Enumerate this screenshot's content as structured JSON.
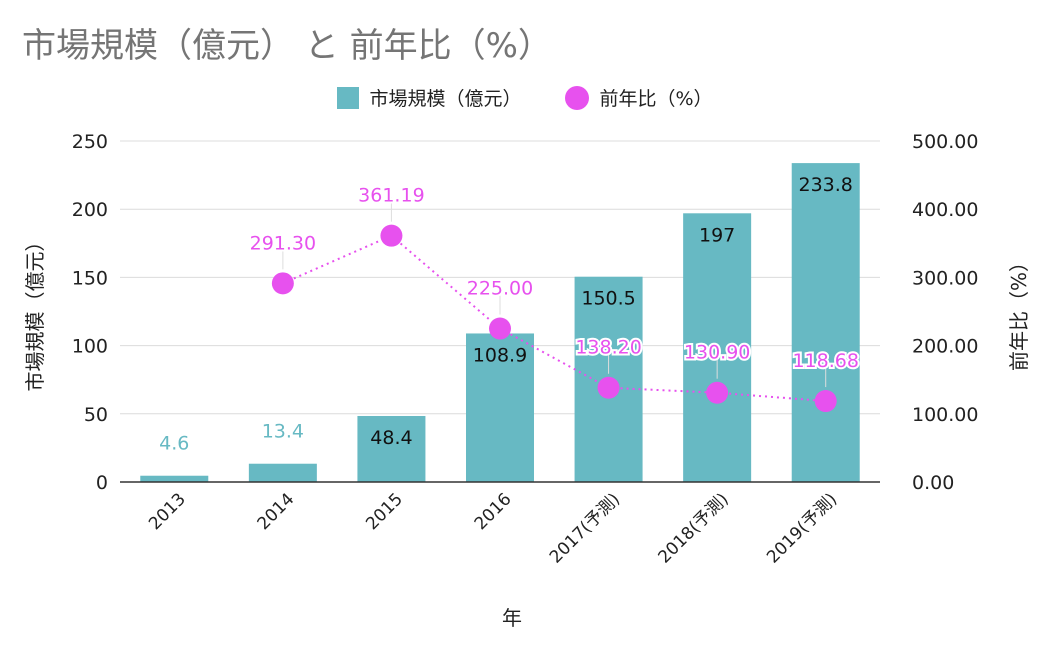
{
  "chart_data": {
    "type": "bar",
    "title": "市場規模（億元） と 前年比（%）",
    "xlabel": "年",
    "ylabel": "市場規模（億元）",
    "ylabel_right": "前年比（%）",
    "categories": [
      "2013",
      "2014",
      "2015",
      "2016",
      "2017(予測)",
      "2018(予測)",
      "2019(予測)"
    ],
    "series": [
      {
        "name": "市場規模（億元）",
        "type": "bar",
        "axis": "left",
        "color": "#67b9c3",
        "values": [
          4.6,
          13.4,
          48.4,
          108.9,
          150.5,
          197,
          233.8
        ],
        "labels": [
          "4.6",
          "13.4",
          "48.4",
          "108.9",
          "150.5",
          "197",
          "233.8"
        ]
      },
      {
        "name": "前年比（%）",
        "type": "line",
        "axis": "right",
        "color": "#e751ee",
        "line_style": "dotted",
        "values": [
          null,
          291.3,
          361.19,
          225.0,
          138.2,
          130.9,
          118.68
        ],
        "labels": [
          "",
          "291.30",
          "361.19",
          "225.00",
          "138.20",
          "130.90",
          "118.68"
        ]
      }
    ],
    "ylim": [
      0,
      250
    ],
    "yticks": [
      "0",
      "50",
      "100",
      "150",
      "200",
      "250"
    ],
    "ylim_right": [
      0,
      500
    ],
    "yticks_right": [
      "0.00",
      "100.00",
      "200.00",
      "300.00",
      "400.00",
      "500.00"
    ],
    "grid": true,
    "legend_position": "top"
  }
}
